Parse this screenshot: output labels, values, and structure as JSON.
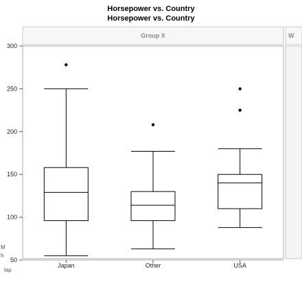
{
  "header": {
    "title_line1": "Horsepower vs. Country",
    "title_line2": "Horsepower vs. Country"
  },
  "panel": {
    "group_label": "Group X",
    "right_stub_label": "W"
  },
  "left_fragments": [
    "M",
    "h",
    "lap"
  ],
  "chart_data": {
    "type": "box",
    "title": "Horsepower vs. Country",
    "xlabel": "",
    "ylabel": "",
    "ylim": [
      50,
      300
    ],
    "yticks": [
      50,
      100,
      150,
      200,
      250,
      300
    ],
    "grid": false,
    "categories": [
      "Japan",
      "Other",
      "USA"
    ],
    "boxes": [
      {
        "category": "Japan",
        "whisker_low": 55,
        "q1": 96,
        "median": 129,
        "q3": 158,
        "whisker_high": 250,
        "outliers": [
          278
        ]
      },
      {
        "category": "Other",
        "whisker_low": 63,
        "q1": 96,
        "median": 114,
        "q3": 130,
        "whisker_high": 177,
        "outliers": [
          208
        ]
      },
      {
        "category": "USA",
        "whisker_low": 88,
        "q1": 110,
        "median": 140,
        "q3": 150,
        "whisker_high": 180,
        "outliers": [
          225,
          250
        ]
      }
    ]
  }
}
